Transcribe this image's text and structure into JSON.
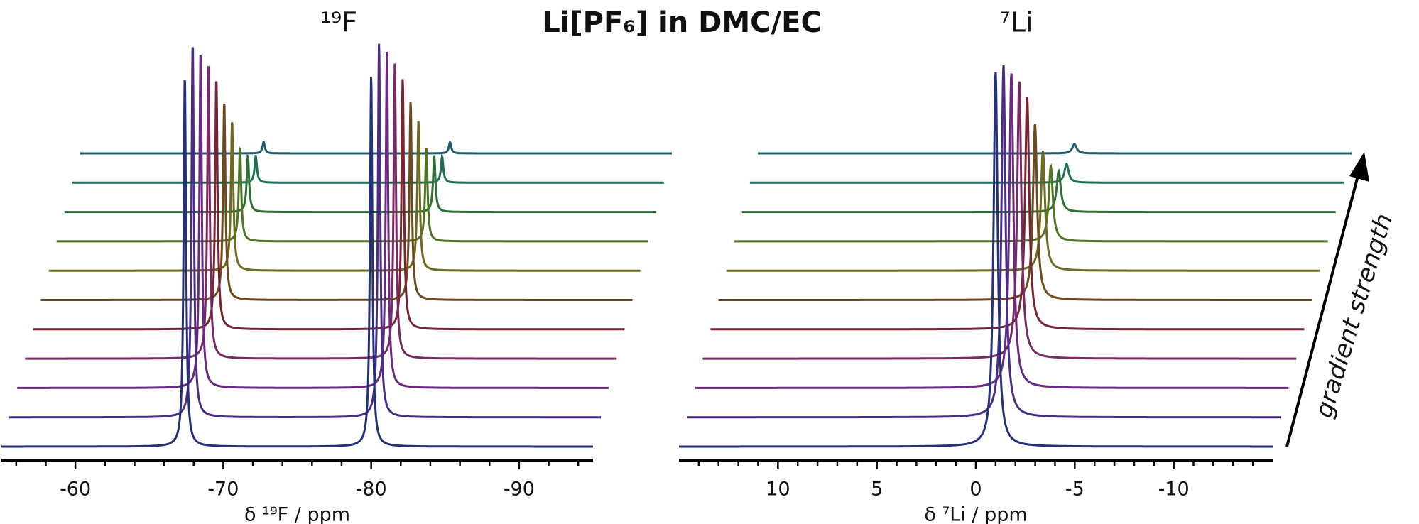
{
  "title": "Li[PF₆] in DMC/EC",
  "annotation": "gradient strength",
  "chart_data": [
    {
      "type": "stacked-spectra",
      "label": "¹⁹F",
      "xlabel": "δ ¹⁹F / ppm",
      "xlim": [
        -55,
        -95
      ],
      "xticks": [
        -60,
        -70,
        -80,
        -90
      ],
      "xminorticks": [
        -56,
        -58,
        -62,
        -64,
        -66,
        -68,
        -72,
        -74,
        -76,
        -78,
        -82,
        -84,
        -86,
        -88,
        -92,
        -94
      ],
      "peaks": [
        -67.4,
        -80.0
      ],
      "series": [
        {
          "color": "#25307a",
          "values": [
            0.99,
            0.99
          ]
        },
        {
          "color": "#4a2e86",
          "values": [
            1.0,
            1.0
          ]
        },
        {
          "color": "#6a2a80",
          "values": [
            0.9,
            0.9
          ]
        },
        {
          "color": "#7a2a62",
          "values": [
            0.79,
            0.79
          ]
        },
        {
          "color": "#7a2432",
          "values": [
            0.67,
            0.67
          ]
        },
        {
          "color": "#6c4a1e",
          "values": [
            0.53,
            0.53
          ]
        },
        {
          "color": "#6e6a20",
          "values": [
            0.4,
            0.4
          ]
        },
        {
          "color": "#4f7424",
          "values": [
            0.25,
            0.25
          ]
        },
        {
          "color": "#2e7034",
          "values": [
            0.15,
            0.15
          ]
        },
        {
          "color": "#1e6e5a",
          "values": [
            0.07,
            0.07
          ]
        },
        {
          "color": "#1e5a70",
          "values": [
            0.03,
            0.03
          ]
        }
      ]
    },
    {
      "type": "stacked-spectra",
      "label": "⁷Li",
      "xlabel": "δ ⁷Li / ppm",
      "xlim": [
        15,
        -15
      ],
      "xticks": [
        10,
        5,
        0,
        -5,
        -10
      ],
      "xminorticks": [
        14,
        13,
        12,
        11,
        9,
        8,
        7,
        6,
        4,
        3,
        2,
        1,
        -1,
        -2,
        -3,
        -4,
        -6,
        -7,
        -8,
        -9,
        -11,
        -12,
        -13,
        -14
      ],
      "peaks": [
        -1.0
      ],
      "series": [
        {
          "color": "#25307a",
          "values": [
            1.0
          ]
        },
        {
          "color": "#4a2e86",
          "values": [
            0.94
          ]
        },
        {
          "color": "#6a2a80",
          "values": [
            0.84
          ]
        },
        {
          "color": "#7a2a62",
          "values": [
            0.74
          ]
        },
        {
          "color": "#7a2432",
          "values": [
            0.62
          ]
        },
        {
          "color": "#6c4a1e",
          "values": [
            0.47
          ]
        },
        {
          "color": "#6e6a20",
          "values": [
            0.32
          ]
        },
        {
          "color": "#4f7424",
          "values": [
            0.2
          ]
        },
        {
          "color": "#2e7034",
          "values": [
            0.11
          ]
        },
        {
          "color": "#1e6e5a",
          "values": [
            0.05
          ]
        },
        {
          "color": "#1e5a70",
          "values": [
            0.025
          ]
        }
      ]
    }
  ]
}
